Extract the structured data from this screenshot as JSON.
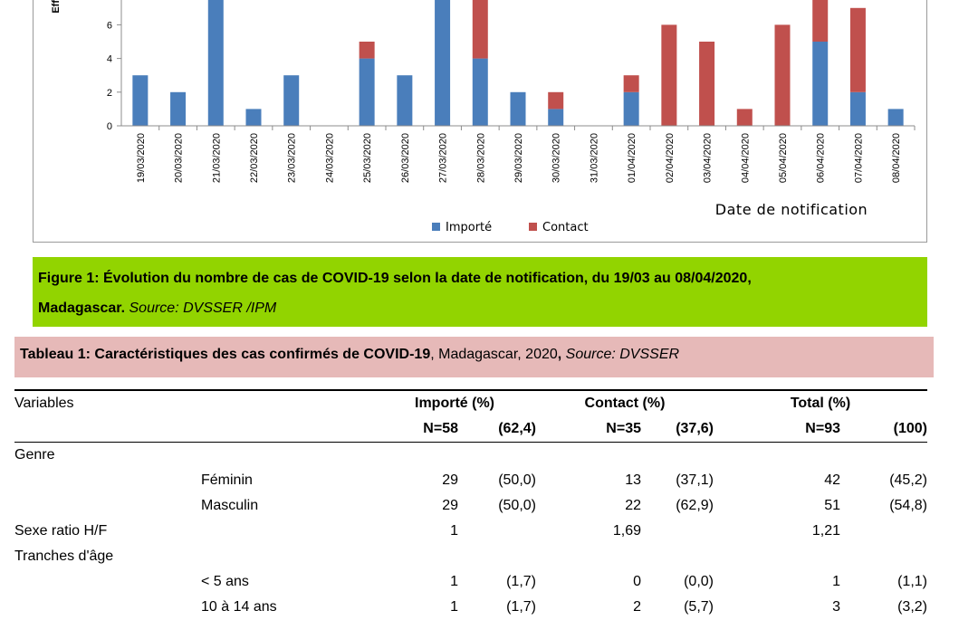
{
  "chart_data": {
    "type": "bar",
    "stacked": true,
    "xlabel": "Date de notification",
    "ylabel": "Eff",
    "ylim": [
      0,
      8
    ],
    "yticks": [
      0,
      2,
      4,
      6
    ],
    "categories": [
      "19/03/2020",
      "20/03/2020",
      "21/03/2020",
      "22/03/2020",
      "23/03/2020",
      "24/03/2020",
      "25/03/2020",
      "26/03/2020",
      "27/03/2020",
      "28/03/2020",
      "29/03/2020",
      "30/03/2020",
      "31/03/2020",
      "01/04/2020",
      "02/04/2020",
      "03/04/2020",
      "04/04/2020",
      "05/04/2020",
      "06/04/2020",
      "07/04/2020",
      "08/04/2020"
    ],
    "series": [
      {
        "name": "Importé",
        "color": "#4a7ebb",
        "values": [
          3,
          2,
          8,
          1,
          3,
          0,
          4,
          3,
          8,
          4,
          2,
          1,
          0,
          2,
          0,
          0,
          0,
          0,
          5,
          2,
          1
        ]
      },
      {
        "name": "Contact",
        "color": "#c0504d",
        "values": [
          0,
          0,
          0,
          0,
          0,
          0,
          1,
          0,
          0,
          4,
          0,
          1,
          0,
          1,
          6,
          5,
          1,
          6,
          3,
          5,
          0
        ]
      }
    ],
    "legend_position": "bottom"
  },
  "figure": {
    "label": "Figure 1:",
    "title_line1": " Évolution du nombre de cas de COVID-19 selon la date de notification, du 19/03 au 08/04/2020,",
    "title_line2": "Madagascar.",
    "source": " Source: DVSSER /IPM"
  },
  "table_caption": {
    "label": "Tableau 1:",
    "title": " Caractéristiques des cas confirmés de COVID-19",
    "rest": ", Madagascar, 2020",
    "comma": ",",
    "source": " Source: DVSSER"
  },
  "table": {
    "header": {
      "variables": "Variables",
      "importe": "Importé (%)",
      "contact": "Contact (%)",
      "total": "Total (%)",
      "n_importe": "N=58",
      "p_importe": "(62,4)",
      "n_contact": "N=35",
      "p_contact": "(37,6)",
      "n_total": "N=93",
      "p_total": "(100)"
    },
    "rows": [
      {
        "var": "Genre",
        "sub": "",
        "i": "",
        "ip": "",
        "c": "",
        "cp": "",
        "t": "",
        "tp": ""
      },
      {
        "var": "",
        "sub": "Féminin",
        "i": "29",
        "ip": "(50,0)",
        "c": "13",
        "cp": "(37,1)",
        "t": "42",
        "tp": "(45,2)"
      },
      {
        "var": "",
        "sub": "Masculin",
        "i": "29",
        "ip": "(50,0)",
        "c": "22",
        "cp": "(62,9)",
        "t": "51",
        "tp": "(54,8)"
      },
      {
        "var": "Sexe ratio H/F",
        "sub": "",
        "i": "1",
        "ip": "",
        "c": "1,69",
        "cp": "",
        "t": "1,21",
        "tp": ""
      },
      {
        "var": "Tranches d'âge",
        "sub": "",
        "i": "",
        "ip": "",
        "c": "",
        "cp": "",
        "t": "",
        "tp": ""
      },
      {
        "var": "",
        "sub": "< 5 ans",
        "i": "1",
        "ip": "(1,7)",
        "c": "0",
        "cp": "(0,0)",
        "t": "1",
        "tp": "(1,1)"
      },
      {
        "var": "",
        "sub": "10 à 14 ans",
        "i": "1",
        "ip": "(1,7)",
        "c": "2",
        "cp": "(5,7)",
        "t": "3",
        "tp": "(3,2)"
      }
    ]
  }
}
